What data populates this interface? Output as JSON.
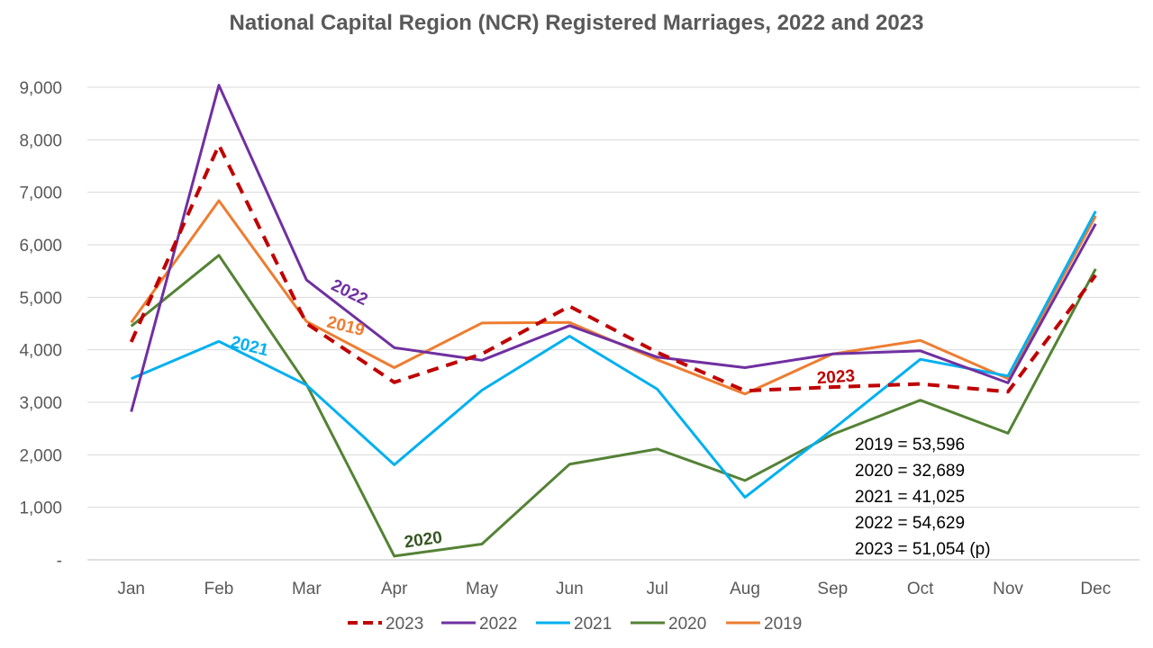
{
  "chart_data": {
    "type": "line",
    "title": "National Capital Region (NCR) Registered Marriages, 2022 and 2023",
    "categories": [
      "Jan",
      "Feb",
      "Mar",
      "Apr",
      "May",
      "Jun",
      "Jul",
      "Aug",
      "Sep",
      "Oct",
      "Nov",
      "Dec"
    ],
    "ylim": [
      0,
      9000
    ],
    "yticks": [
      {
        "value": 0,
        "label": "-"
      },
      {
        "value": 1000,
        "label": "1,000"
      },
      {
        "value": 2000,
        "label": "2,000"
      },
      {
        "value": 3000,
        "label": "3,000"
      },
      {
        "value": 4000,
        "label": "4,000"
      },
      {
        "value": 5000,
        "label": "5,000"
      },
      {
        "value": 6000,
        "label": "6,000"
      },
      {
        "value": 7000,
        "label": "7,000"
      },
      {
        "value": 8000,
        "label": "8,000"
      },
      {
        "value": 9000,
        "label": "9,000"
      }
    ],
    "grid": true,
    "legend_position": "bottom",
    "series": [
      {
        "name": "2023",
        "color": "#C00000",
        "dashed": true,
        "values": [
          4150,
          7900,
          4500,
          3380,
          3920,
          4830,
          3950,
          3220,
          3290,
          3350,
          3200,
          5420
        ]
      },
      {
        "name": "2022",
        "color": "#7030A0",
        "dashed": false,
        "values": [
          2820,
          9040,
          5330,
          4040,
          3800,
          4460,
          3860,
          3660,
          3920,
          3980,
          3370,
          6400
        ]
      },
      {
        "name": "2021",
        "color": "#00B0F0",
        "dashed": false,
        "values": [
          3450,
          4160,
          3330,
          1810,
          3230,
          4260,
          3250,
          1190,
          2480,
          3820,
          3500,
          6640
        ]
      },
      {
        "name": "2020",
        "color": "#548235",
        "dashed": false,
        "values": [
          4450,
          5800,
          3340,
          70,
          300,
          1820,
          2110,
          1510,
          2390,
          3040,
          2410,
          5540
        ]
      },
      {
        "name": "2019",
        "color": "#ED7D31",
        "dashed": false,
        "values": [
          4520,
          6840,
          4540,
          3660,
          4510,
          4520,
          3810,
          3160,
          3920,
          4180,
          3450,
          6550
        ]
      }
    ],
    "inline_labels": [
      {
        "series": "2022",
        "text": "2022",
        "color": "#7030A0",
        "at_category": 2,
        "at_value": 5000,
        "rotate": 26
      },
      {
        "series": "2019",
        "text": "2019",
        "color": "#ED7D31",
        "at_category": 2,
        "at_value": 4350,
        "rotate": 14
      },
      {
        "series": "2021",
        "text": "2021",
        "color": "#00B0F0",
        "at_category": 0,
        "at_value": 3970,
        "rotate": 14
      },
      {
        "series": "2020",
        "text": "2020",
        "color": "#375623",
        "at_category": 3,
        "at_value": 280,
        "rotate": -8
      },
      {
        "series": "2023",
        "text": "2023",
        "color": "#C00000",
        "at_category": 8,
        "at_value": 3380,
        "rotate": -4
      }
    ],
    "annotation_lines": [
      "2019 = 53,596",
      "2020 = 32,689",
      "2021 = 41,025",
      "2022 = 54,629",
      "2023 = 51,054 (p)"
    ]
  }
}
